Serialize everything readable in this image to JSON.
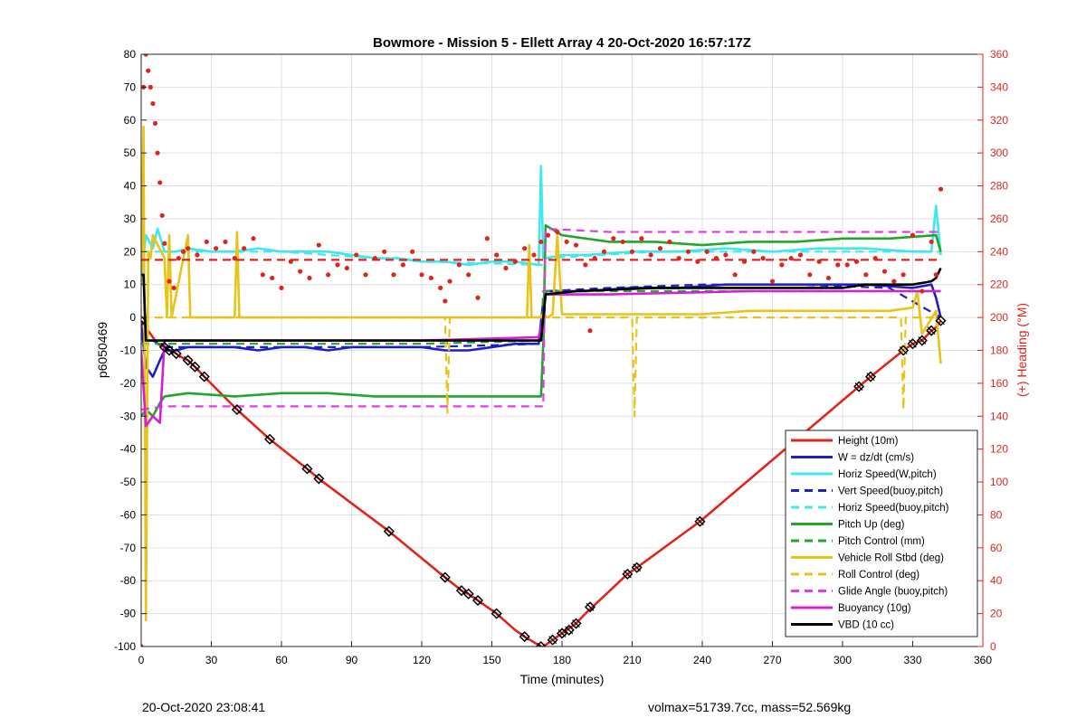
{
  "chart_data": {
    "type": "line",
    "title": "Bowmore - Mission 5 - Ellett Array 4 20-Oct-2020 16:57:17Z",
    "xlabel": "Time (minutes)",
    "ylabel": "p6050469",
    "y2label": "(+) Heading (°M)",
    "xlim": [
      0,
      360
    ],
    "ylim": [
      -100,
      80
    ],
    "y2lim": [
      0,
      360
    ],
    "xticks": [
      0,
      30,
      60,
      90,
      120,
      150,
      180,
      210,
      240,
      270,
      300,
      330,
      360
    ],
    "yticks": [
      -100,
      -90,
      -80,
      -70,
      -60,
      -50,
      -40,
      -30,
      -20,
      -10,
      0,
      10,
      20,
      30,
      40,
      50,
      60,
      70,
      80
    ],
    "y2ticks": [
      0,
      20,
      40,
      60,
      80,
      100,
      120,
      140,
      160,
      180,
      200,
      220,
      240,
      260,
      280,
      300,
      320,
      340,
      360
    ],
    "grid": true,
    "legend_location": "lower-right",
    "colors": {
      "heading_axis": "#e0241c",
      "height": "#e0241c",
      "w": "#1f1fc4",
      "horiz": "#3ee8ee",
      "pitch": "#22a52b",
      "roll": "#e6c419",
      "glide": "#e23fe0",
      "buoy": "#d41fd8",
      "vbd": "#000000"
    },
    "series": [
      {
        "name": "Height (10m)",
        "color": "#e0241c",
        "dash": false,
        "x": [
          0,
          7,
          10,
          12,
          15,
          17,
          20,
          23,
          27,
          41,
          55,
          71,
          76,
          106,
          130,
          137,
          140,
          144,
          152,
          160,
          164,
          171,
          172,
          174,
          176,
          178,
          180,
          182,
          186,
          190,
          193,
          208,
          212,
          239,
          307,
          312,
          326,
          328,
          330,
          334,
          338,
          340,
          342
        ],
        "y": [
          -1,
          -8,
          -9,
          -10,
          -11,
          -12,
          -13,
          -15,
          -18,
          -28,
          -37,
          -46,
          -49,
          -65,
          -79,
          -83,
          -84,
          -86,
          -90,
          -95,
          -97,
          -100,
          -100,
          -99,
          -98,
          -97,
          -96,
          -95,
          -93,
          -90,
          -88,
          -78,
          -76,
          -62,
          -21,
          -18,
          -10,
          -9,
          -8,
          -7,
          -4,
          -3,
          -1
        ]
      },
      {
        "name": "W = dz/dt (cm/s)",
        "color": "#1f1fc4",
        "dash": false,
        "x": [
          0,
          2,
          5,
          8,
          10,
          15,
          20,
          30,
          40,
          50,
          60,
          70,
          80,
          90,
          100,
          110,
          120,
          130,
          140,
          150,
          160,
          170,
          172,
          173,
          176,
          190,
          210,
          230,
          250,
          270,
          290,
          310,
          330,
          338,
          340,
          342
        ],
        "y": [
          -2,
          -15,
          -18,
          -13,
          -10,
          -10,
          -9,
          -9,
          -9,
          -10,
          -9,
          -9,
          -10,
          -9,
          -9,
          -9,
          -9,
          -10,
          -10,
          -9,
          -8,
          -8,
          5,
          8,
          8,
          8,
          9,
          9,
          10,
          10,
          10,
          10,
          9,
          10,
          6,
          0
        ]
      },
      {
        "name": "Horiz Speed(W,pitch)",
        "color": "#3ee8ee",
        "dash": false,
        "x": [
          0,
          2,
          5,
          7,
          10,
          15,
          20,
          30,
          40,
          50,
          60,
          70,
          80,
          90,
          100,
          110,
          120,
          130,
          140,
          150,
          160,
          170,
          171,
          172,
          173,
          180,
          190,
          210,
          230,
          250,
          270,
          290,
          310,
          330,
          338,
          340,
          342
        ],
        "y": [
          12,
          25,
          21,
          27,
          20,
          20,
          21,
          20,
          20,
          21,
          20,
          20,
          20,
          19,
          18,
          18,
          17,
          17,
          16,
          17,
          17,
          16,
          46,
          18,
          18,
          19,
          19,
          20,
          20,
          21,
          20,
          21,
          21,
          20,
          20,
          34,
          19
        ]
      },
      {
        "name": "Vert Speed(buoy,pitch)",
        "color": "#1f1fc4",
        "dash": true,
        "x": [
          0,
          10,
          40,
          80,
          120,
          172,
          173,
          200,
          240,
          280,
          320,
          342
        ],
        "y": [
          -5,
          -9,
          -9,
          -9,
          -9,
          -8,
          8,
          9,
          10,
          10,
          9,
          0
        ]
      },
      {
        "name": "Horiz Speed(buoy,pitch)",
        "color": "#3ee8ee",
        "dash": true,
        "x": [
          0,
          10,
          60,
          120,
          172,
          173,
          220,
          280,
          342
        ],
        "y": [
          20,
          20,
          20,
          17,
          16,
          18,
          20,
          20,
          20
        ]
      },
      {
        "name": "Pitch Up (deg)",
        "color": "#22a52b",
        "dash": false,
        "x": [
          0,
          2,
          5,
          8,
          10,
          20,
          40,
          60,
          80,
          100,
          120,
          140,
          160,
          171,
          172,
          173,
          180,
          200,
          220,
          240,
          260,
          280,
          300,
          320,
          340,
          342
        ],
        "y": [
          -30,
          -28,
          -30,
          -26,
          -24,
          -23,
          -24,
          -23,
          -23,
          -24,
          -24,
          -24,
          -24,
          -24,
          -8,
          28,
          25,
          23,
          23,
          22,
          23,
          23,
          24,
          24,
          25,
          20
        ]
      },
      {
        "name": "Pitch Control (mm)",
        "color": "#22a52b",
        "dash": true,
        "x": [
          0,
          10,
          60,
          120,
          171,
          172,
          200,
          260,
          342
        ],
        "y": [
          -8,
          -8,
          -8,
          -8,
          -7,
          8,
          8,
          8,
          8
        ]
      },
      {
        "name": "Vehicle Roll Stbd (deg)",
        "color": "#e6c419",
        "dash": false,
        "x": [
          0,
          1,
          2,
          3,
          4,
          5,
          10,
          11,
          12,
          13,
          20,
          21,
          22,
          30,
          40,
          41,
          42,
          50,
          60,
          80,
          100,
          120,
          140,
          160,
          165,
          166,
          167,
          170,
          172,
          174,
          176,
          178,
          180,
          200,
          220,
          240,
          260,
          280,
          300,
          320,
          330,
          332,
          334,
          340,
          342
        ],
        "y": [
          10,
          58,
          -92,
          20,
          18,
          25,
          18,
          0,
          25,
          0,
          25,
          0,
          0,
          0,
          0,
          26,
          0,
          0,
          0,
          0,
          0,
          0,
          0,
          0,
          0,
          22,
          0,
          0,
          1,
          0,
          1,
          25,
          1,
          1,
          1,
          1,
          2,
          2,
          2,
          2,
          3,
          8,
          -5,
          2,
          -14
        ]
      },
      {
        "name": "Roll Control (deg)",
        "color": "#e6c419",
        "dash": true,
        "x": [
          0,
          10,
          60,
          120,
          130,
          131,
          132,
          172,
          173,
          180,
          210,
          211,
          212,
          260,
          320,
          325,
          326,
          327,
          342
        ],
        "y": [
          0,
          0,
          0,
          0,
          0,
          -29,
          0,
          0,
          0,
          0,
          0,
          -30,
          0,
          0,
          0,
          0,
          -28,
          0,
          0
        ]
      },
      {
        "name": "Glide Angle (buoy,pitch)",
        "color": "#e23fe0",
        "dash": true,
        "x": [
          0,
          10,
          20,
          60,
          120,
          172,
          173,
          200,
          260,
          320,
          342
        ],
        "y": [
          -28,
          -27,
          -27,
          -27,
          -27,
          -27,
          27,
          26,
          26,
          26,
          26
        ]
      },
      {
        "name": "Buoyancy (10g)",
        "color": "#d41fd8",
        "dash": false,
        "x": [
          0,
          2,
          5,
          8,
          10,
          20,
          60,
          120,
          170,
          172,
          173,
          200,
          260,
          320,
          342
        ],
        "y": [
          -10,
          -33,
          -30,
          -32,
          -7,
          -7,
          -7,
          -7,
          -6,
          0,
          7,
          7,
          8,
          8,
          8
        ]
      },
      {
        "name": "VBD (10 cc)",
        "color": "#000000",
        "dash": false,
        "x": [
          0,
          1,
          2,
          3,
          171,
          172,
          173,
          186,
          220,
          260,
          300,
          310,
          330,
          338,
          340,
          342
        ],
        "y": [
          13,
          13,
          -7,
          -7,
          -7,
          0,
          7,
          8,
          9,
          9,
          9,
          10,
          10,
          11,
          12,
          15
        ]
      },
      {
        "name": "",
        "role": "heading",
        "axis": "right",
        "color": "#e0241c",
        "dash": false,
        "markers": "dots",
        "x": [
          0,
          1,
          2,
          3,
          4,
          5,
          6,
          7,
          8,
          9,
          10,
          12,
          14,
          16,
          18,
          20,
          24,
          28,
          32,
          36,
          40,
          44,
          48,
          52,
          56,
          60,
          64,
          68,
          72,
          76,
          80,
          84,
          88,
          92,
          96,
          100,
          104,
          108,
          112,
          116,
          120,
          124,
          128,
          130,
          132,
          136,
          140,
          144,
          148,
          152,
          156,
          160,
          164,
          168,
          171,
          174,
          178,
          182,
          186,
          190,
          192,
          194,
          198,
          202,
          206,
          210,
          214,
          218,
          222,
          226,
          230,
          234,
          238,
          242,
          246,
          250,
          254,
          258,
          262,
          266,
          270,
          274,
          278,
          282,
          286,
          290,
          294,
          298,
          302,
          306,
          310,
          314,
          318,
          322,
          326,
          330,
          334,
          338,
          340,
          342
        ],
        "y": [
          0,
          340,
          360,
          350,
          340,
          330,
          318,
          300,
          282,
          262,
          245,
          222,
          218,
          236,
          240,
          242,
          238,
          246,
          242,
          246,
          236,
          242,
          248,
          226,
          224,
          218,
          234,
          228,
          224,
          244,
          226,
          232,
          230,
          238,
          226,
          236,
          240,
          226,
          232,
          240,
          226,
          224,
          218,
          210,
          222,
          232,
          226,
          212,
          248,
          238,
          230,
          234,
          242,
          238,
          246,
          250,
          252,
          246,
          244,
          232,
          192,
          236,
          240,
          248,
          246,
          240,
          248,
          238,
          242,
          246,
          236,
          240,
          234,
          240,
          236,
          238,
          226,
          234,
          240,
          236,
          222,
          232,
          236,
          238,
          226,
          234,
          224,
          232,
          232,
          234,
          226,
          236,
          228,
          222,
          226,
          250,
          216,
          246,
          226,
          278
        ]
      },
      {
        "name": "",
        "role": "target heading",
        "axis": "right",
        "color": "#e0241c",
        "dash": true,
        "x": [
          0,
          342
        ],
        "y": [
          235,
          235
        ]
      },
      {
        "name": "",
        "role": "gps/depth markers",
        "color": "#000000",
        "markers": "diamond",
        "x": [
          0,
          10,
          12,
          15,
          20,
          23,
          27,
          41,
          55,
          71,
          76,
          106,
          130,
          137,
          140,
          144,
          152,
          164,
          171,
          176,
          180,
          183,
          186,
          192,
          208,
          212,
          239,
          307,
          312,
          326,
          330,
          334,
          338,
          342
        ],
        "y": [
          -1,
          -9,
          -10,
          -11,
          -13,
          -15,
          -18,
          -28,
          -37,
          -46,
          -49,
          -65,
          -79,
          -83,
          -84,
          -86,
          -90,
          -97,
          -100,
          -98,
          -96,
          -95,
          -93,
          -88,
          -78,
          -76,
          -62,
          -21,
          -18,
          -10,
          -8,
          -7,
          -4,
          -1
        ]
      }
    ]
  },
  "footer": {
    "left": "20-Oct-2020 23:08:41",
    "right": "volmax=51739.7cc, mass=52.569kg"
  }
}
